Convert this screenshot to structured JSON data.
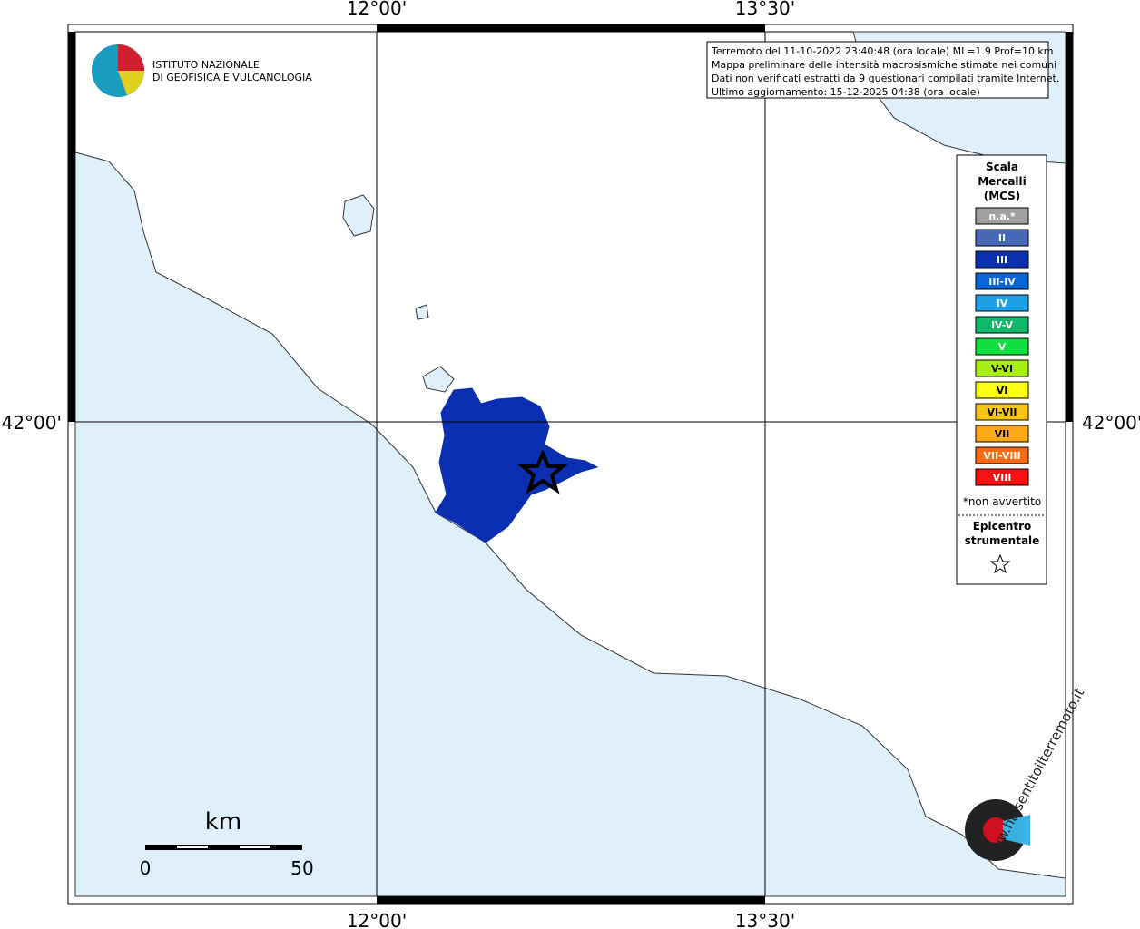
{
  "map": {
    "lon_labels": [
      "12°00'",
      "13°30'"
    ],
    "lat_labels": [
      "42°00'"
    ],
    "logo": [
      "ISTITUTO NAZIONALE",
      "DI GEOFISICA E VULCANOLOGIA"
    ],
    "info": [
      "Terremoto del 11-10-2022 23:40:48 (ora locale) ML=1.9 Prof=10 km",
      "Mappa preliminare delle intensità macrosismiche stimate nei comuni",
      "Dati non verificati estratti da 9 questionari compilati tramite Internet.",
      "Ultimo aggiornamento: 15-12-2025 04:38 (ora locale)"
    ],
    "legend": {
      "title": [
        "Scala",
        "Mercalli",
        "(MCS)"
      ],
      "items": [
        {
          "label": "n.a.*",
          "color": "#a0a0a0"
        },
        {
          "label": "II",
          "color": "#4a68b8"
        },
        {
          "label": "III",
          "color": "#0a2fb0"
        },
        {
          "label": "III-IV",
          "color": "#0a66d6"
        },
        {
          "label": "IV",
          "color": "#1ea0e6"
        },
        {
          "label": "IV-V",
          "color": "#12b86c"
        },
        {
          "label": "V",
          "color": "#10e040"
        },
        {
          "label": "V-VI",
          "color": "#a8f010"
        },
        {
          "label": "VI",
          "color": "#ffff10"
        },
        {
          "label": "VI-VII",
          "color": "#f8c418"
        },
        {
          "label": "VII",
          "color": "#ffa818"
        },
        {
          "label": "VII-VIII",
          "color": "#ff6a10"
        },
        {
          "label": "VIII",
          "color": "#ff1010"
        }
      ],
      "note": "*non avvertito",
      "epicenter": [
        "Epicentro",
        "strumentale"
      ]
    },
    "scale_bar": {
      "unit": "km",
      "labels": [
        "0",
        "50"
      ]
    },
    "site": "www.haisentitoilterremoto.it"
  }
}
